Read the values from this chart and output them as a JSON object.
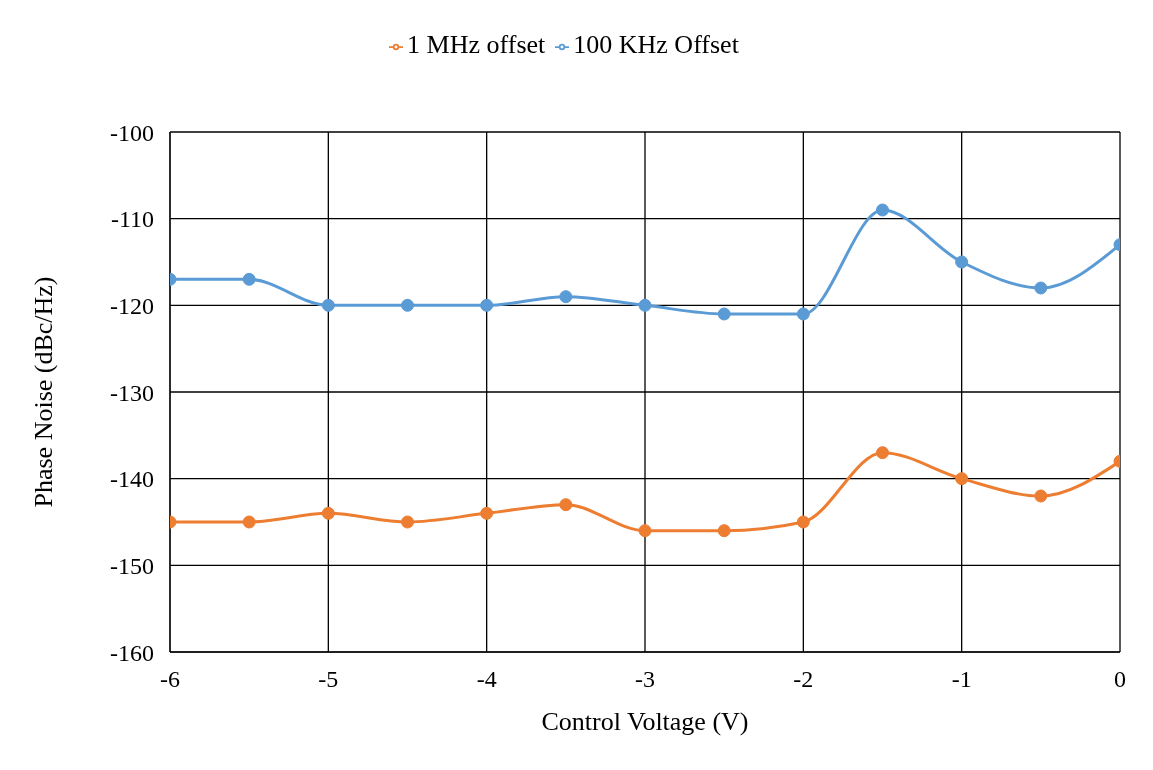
{
  "chart_data": {
    "type": "line",
    "xlabel": "Control Voltage (V)",
    "ylabel": "Phase Noise (dBc/Hz)",
    "x": [
      -6,
      -5.5,
      -5,
      -4.5,
      -4,
      -3.5,
      -3,
      -2.5,
      -2,
      -1.5,
      -1,
      -0.5,
      0
    ],
    "series": [
      {
        "name": "100 KHz Offset",
        "color": "#5b9bd5",
        "values": [
          -117,
          -117,
          -120,
          -120,
          -120,
          -119,
          -120,
          -121,
          -121,
          -109,
          -115,
          -118,
          -113
        ]
      },
      {
        "name": "1 MHz offset",
        "color": "#ed7d31",
        "values": [
          -145,
          -145,
          -144,
          -145,
          -144,
          -143,
          -146,
          -146,
          -145,
          -137,
          -140,
          -142,
          -138
        ]
      }
    ],
    "xlim": [
      -6,
      0
    ],
    "xticks": [
      -6,
      -5,
      -4,
      -3,
      -2,
      -1,
      0
    ],
    "ylim": [
      -160,
      -100
    ],
    "yticks": [
      -160,
      -150,
      -140,
      -130,
      -120,
      -110,
      -100
    ],
    "grid": true,
    "legend": "top",
    "marker": "circle",
    "line_style": "solid"
  }
}
